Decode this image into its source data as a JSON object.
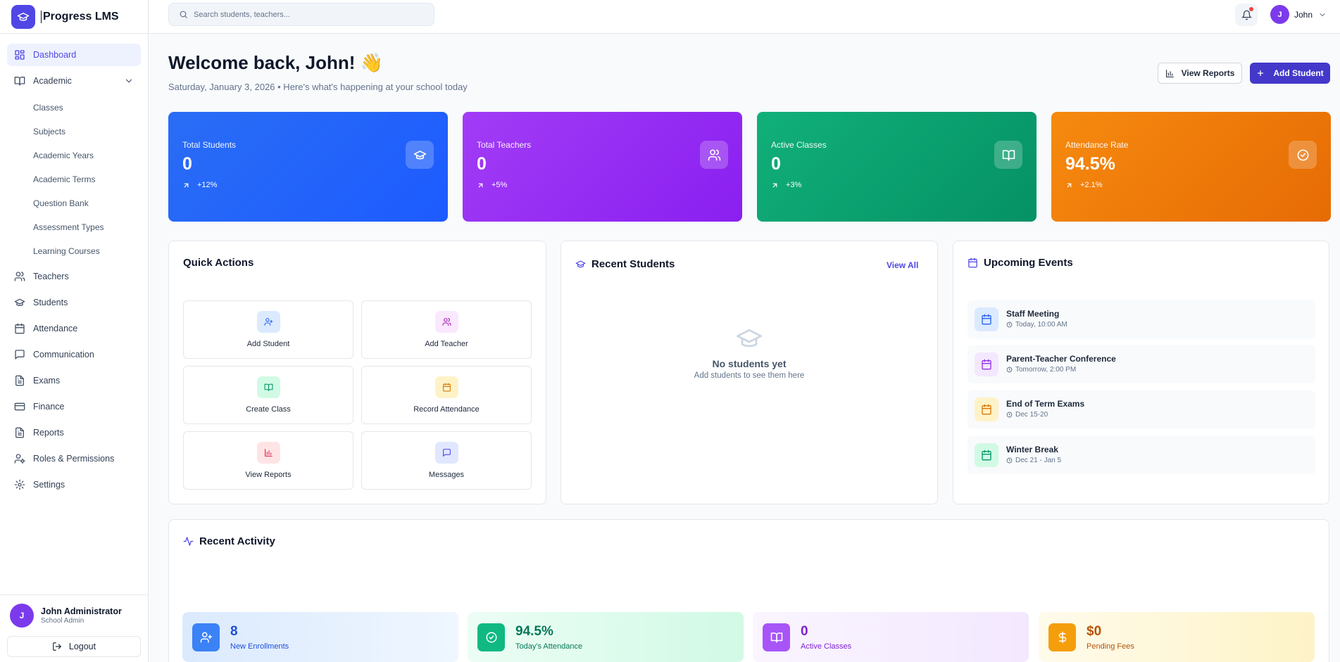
{
  "app": {
    "name": "Progress LMS"
  },
  "sidebar": {
    "items": [
      {
        "label": "Dashboard",
        "icon": "dashboard-grid-icon",
        "active": true
      },
      {
        "label": "Academic",
        "icon": "book-open-icon",
        "expanded": true,
        "children": [
          "Classes",
          "Subjects",
          "Academic Years",
          "Academic Terms",
          "Question Bank",
          "Assessment Types",
          "Learning Courses"
        ]
      },
      {
        "label": "Teachers",
        "icon": "users-icon"
      },
      {
        "label": "Students",
        "icon": "graduation-cap-icon"
      },
      {
        "label": "Attendance",
        "icon": "calendar-icon"
      },
      {
        "label": "Communication",
        "icon": "message-square-icon"
      },
      {
        "label": "Exams",
        "icon": "file-text-icon"
      },
      {
        "label": "Finance",
        "icon": "credit-card-icon"
      },
      {
        "label": "Reports",
        "icon": "file-text-icon"
      },
      {
        "label": "Roles & Permissions",
        "icon": "user-cog-icon"
      },
      {
        "label": "Settings",
        "icon": "gear-icon"
      }
    ]
  },
  "footer_user": {
    "initial": "J",
    "name": "John Administrator",
    "role": "School Admin",
    "logout_label": "Logout"
  },
  "topbar": {
    "search_placeholder": "Search students, teachers...",
    "user_initial": "J",
    "user_name": "John"
  },
  "header": {
    "welcome": "Welcome back, John! 👋",
    "subtitle": "Saturday, January 3, 2026 • Here's what's happening at your school today",
    "view_reports_label": "View Reports",
    "add_student_label": "Add Student"
  },
  "stats": [
    {
      "label": "Total Students",
      "value": "0",
      "trend": "+12%",
      "icon": "graduation-cap-icon",
      "gradient": [
        "#2a6df5",
        "#1d5bff"
      ]
    },
    {
      "label": "Total Teachers",
      "value": "0",
      "trend": "+5%",
      "icon": "users-icon",
      "gradient": [
        "#a23cf6",
        "#8a1ff0"
      ]
    },
    {
      "label": "Active Classes",
      "value": "0",
      "trend": "+3%",
      "icon": "book-open-icon",
      "gradient": [
        "#11b07a",
        "#059164"
      ]
    },
    {
      "label": "Attendance Rate",
      "value": "94.5%",
      "trend": "+2.1%",
      "icon": "check-circle-icon",
      "gradient": [
        "#f68a0f",
        "#e66b04"
      ]
    }
  ],
  "quick_actions": {
    "title": "Quick Actions",
    "items": [
      {
        "label": "Add Student",
        "icon": "user-plus-icon",
        "bg": "#dbeafe",
        "fg": "#2563eb"
      },
      {
        "label": "Add Teacher",
        "icon": "users-icon",
        "bg": "#fae8ff",
        "fg": "#a21caf"
      },
      {
        "label": "Create Class",
        "icon": "book-open-icon",
        "bg": "#d1fae5",
        "fg": "#059669"
      },
      {
        "label": "Record Attendance",
        "icon": "calendar-icon",
        "bg": "#fef3c7",
        "fg": "#d97706"
      },
      {
        "label": "View Reports",
        "icon": "bar-chart-icon",
        "bg": "#ffe4e6",
        "fg": "#e11d48"
      },
      {
        "label": "Messages",
        "icon": "message-square-icon",
        "bg": "#e0e7ff",
        "fg": "#4f46e5"
      }
    ]
  },
  "recent_students": {
    "title": "Recent Students",
    "view_all": "View All",
    "empty_title": "No students yet",
    "empty_subtitle": "Add students to see them here"
  },
  "upcoming_events": {
    "title": "Upcoming Events",
    "items": [
      {
        "title": "Staff Meeting",
        "time": "Today, 10:00 AM",
        "bg": "#dbeafe",
        "fg": "#2563eb"
      },
      {
        "title": "Parent-Teacher Conference",
        "time": "Tomorrow, 2:00 PM",
        "bg": "#f3e8ff",
        "fg": "#9333ea"
      },
      {
        "title": "End of Term Exams",
        "time": "Dec 15-20",
        "bg": "#fef3c7",
        "fg": "#d97706"
      },
      {
        "title": "Winter Break",
        "time": "Dec 21 - Jan 5",
        "bg": "#d1fae5",
        "fg": "#059669"
      }
    ]
  },
  "recent_activity": {
    "title": "Recent Activity",
    "items": [
      {
        "value": "8",
        "label": "New Enrollments",
        "icon": "user-plus-icon",
        "icon_bg": "#3b82f6",
        "text": "#1d4ed8",
        "bg": [
          "#dbeafe",
          "#eff6ff"
        ]
      },
      {
        "value": "94.5%",
        "label": "Today's Attendance",
        "icon": "check-circle-icon",
        "icon_bg": "#10b981",
        "text": "#047857",
        "bg": [
          "#ecfdf5",
          "#d1fae5"
        ]
      },
      {
        "value": "0",
        "label": "Active Classes",
        "icon": "book-open-icon",
        "icon_bg": "#a855f7",
        "text": "#7e22ce",
        "bg": [
          "#faf5ff",
          "#f3e8ff"
        ]
      },
      {
        "value": "$0",
        "label": "Pending Fees",
        "icon": "dollar-icon",
        "icon_bg": "#f59e0b",
        "text": "#b45309",
        "bg": [
          "#fffbeb",
          "#fef3c7"
        ]
      }
    ]
  }
}
